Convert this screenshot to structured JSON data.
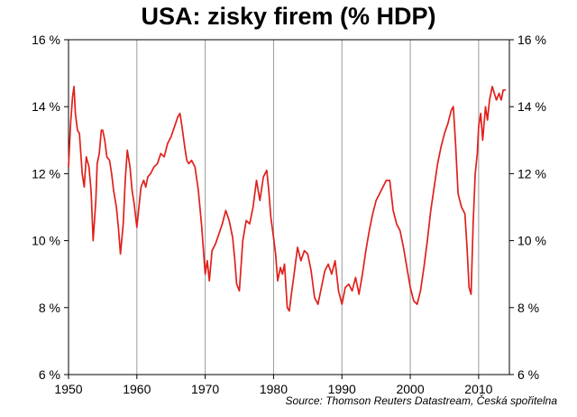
{
  "chart_data": {
    "type": "line",
    "title": "USA: zisky firem (% HDP)",
    "xlabel": "",
    "ylabel": "",
    "xlim": [
      1950,
      2014.5
    ],
    "ylim": [
      6,
      16
    ],
    "x_ticks": [
      1950,
      1960,
      1970,
      1980,
      1990,
      2000,
      2010
    ],
    "x_tick_labels": [
      "1950",
      "1960",
      "1970",
      "1980",
      "1990",
      "2000",
      "2010"
    ],
    "y_ticks": [
      6,
      8,
      10,
      12,
      14,
      16
    ],
    "y_tick_labels": [
      "6 %",
      "8 %",
      "10 %",
      "12 %",
      "14 %",
      "16 %"
    ],
    "grid": "vertical",
    "line_color": "#e0201b",
    "series": [
      {
        "x": [
          1950.0,
          1950.3,
          1950.6,
          1950.8,
          1951.0,
          1951.3,
          1951.6,
          1952.0,
          1952.3,
          1952.6,
          1953.0,
          1953.3,
          1953.6,
          1954.0,
          1954.2,
          1954.5,
          1954.8,
          1955.0,
          1955.3,
          1955.6,
          1956.0,
          1956.3,
          1956.6,
          1957.0,
          1957.3,
          1957.6,
          1958.0,
          1958.3,
          1958.6,
          1959.0,
          1959.3,
          1959.6,
          1960.0,
          1960.3,
          1960.6,
          1961.0,
          1961.3,
          1961.6,
          1962.0,
          1962.5,
          1963.0,
          1963.5,
          1964.0,
          1964.5,
          1965.0,
          1965.5,
          1966.0,
          1966.3,
          1966.6,
          1967.0,
          1967.3,
          1967.6,
          1968.0,
          1968.5,
          1969.0,
          1969.5,
          1970.0,
          1970.3,
          1970.6,
          1971.0,
          1971.5,
          1972.0,
          1972.5,
          1973.0,
          1973.5,
          1974.0,
          1974.3,
          1974.6,
          1975.0,
          1975.5,
          1976.0,
          1976.5,
          1977.0,
          1977.5,
          1978.0,
          1978.5,
          1979.0,
          1979.3,
          1979.6,
          1980.0,
          1980.3,
          1980.6,
          1981.0,
          1981.3,
          1981.6,
          1982.0,
          1982.3,
          1982.6,
          1983.0,
          1983.5,
          1984.0,
          1984.5,
          1985.0,
          1985.5,
          1986.0,
          1986.5,
          1987.0,
          1987.5,
          1988.0,
          1988.5,
          1989.0,
          1989.5,
          1990.0,
          1990.5,
          1991.0,
          1991.5,
          1992.0,
          1992.5,
          1993.0,
          1993.5,
          1994.0,
          1994.5,
          1995.0,
          1995.5,
          1996.0,
          1996.5,
          1997.0,
          1997.5,
          1998.0,
          1998.5,
          1999.0,
          1999.5,
          2000.0,
          2000.5,
          2001.0,
          2001.5,
          2002.0,
          2002.5,
          2003.0,
          2003.5,
          2004.0,
          2004.5,
          2005.0,
          2005.5,
          2006.0,
          2006.3,
          2006.6,
          2007.0,
          2007.5,
          2008.0,
          2008.3,
          2008.6,
          2008.9,
          2009.2,
          2009.5,
          2009.8,
          2010.0,
          2010.3,
          2010.6,
          2011.0,
          2011.3,
          2011.6,
          2012.0,
          2012.3,
          2012.6,
          2013.0,
          2013.3,
          2013.6,
          2014.0
        ],
        "values": [
          12.2,
          13.5,
          14.3,
          14.6,
          13.8,
          13.3,
          13.2,
          12.0,
          11.6,
          12.5,
          12.2,
          11.5,
          10.0,
          11.2,
          12.3,
          12.6,
          13.3,
          13.3,
          13.0,
          12.5,
          12.4,
          12.0,
          11.5,
          11.0,
          10.4,
          9.6,
          10.5,
          11.8,
          12.7,
          12.2,
          11.5,
          11.1,
          10.4,
          11.0,
          11.6,
          11.8,
          11.6,
          11.9,
          12.0,
          12.2,
          12.3,
          12.6,
          12.5,
          12.9,
          13.1,
          13.4,
          13.7,
          13.8,
          13.4,
          12.8,
          12.4,
          12.3,
          12.4,
          12.2,
          11.5,
          10.4,
          9.0,
          9.4,
          8.8,
          9.7,
          9.9,
          10.2,
          10.5,
          10.9,
          10.6,
          10.1,
          9.5,
          8.7,
          8.5,
          10.0,
          10.6,
          10.5,
          11.0,
          11.8,
          11.2,
          11.9,
          12.1,
          11.5,
          10.7,
          10.1,
          9.6,
          8.8,
          9.2,
          9.0,
          9.3,
          8.0,
          7.9,
          8.4,
          9.0,
          9.8,
          9.4,
          9.7,
          9.6,
          9.1,
          8.3,
          8.1,
          8.6,
          9.1,
          9.3,
          9.0,
          9.4,
          8.5,
          8.1,
          8.6,
          8.7,
          8.5,
          8.9,
          8.4,
          9.0,
          9.7,
          10.3,
          10.8,
          11.2,
          11.4,
          11.6,
          11.8,
          11.8,
          10.9,
          10.5,
          10.3,
          9.8,
          9.2,
          8.6,
          8.2,
          8.1,
          8.5,
          9.2,
          10.0,
          10.9,
          11.6,
          12.3,
          12.8,
          13.2,
          13.5,
          13.9,
          14.0,
          13.0,
          11.4,
          11.0,
          10.8,
          9.8,
          8.6,
          8.4,
          10.5,
          12.0,
          12.6,
          13.4,
          13.8,
          13.0,
          14.0,
          13.6,
          14.2,
          14.6,
          14.4,
          14.2,
          14.4,
          14.2,
          14.5,
          14.5
        ]
      }
    ]
  },
  "source_note": "Source: Thomson Reuters Datastream, Česká spořitelna"
}
